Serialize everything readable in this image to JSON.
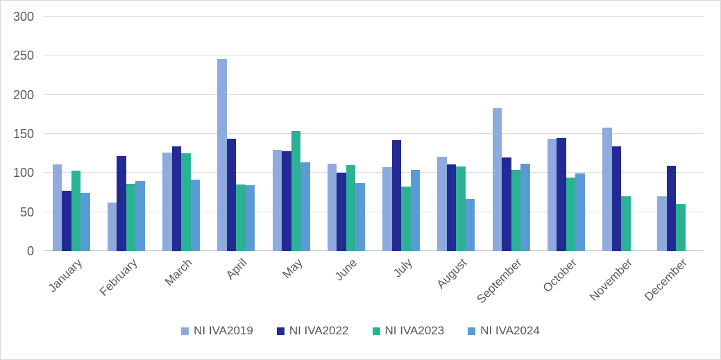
{
  "chart_data": {
    "type": "bar",
    "title": "",
    "categories": [
      "January",
      "February",
      "March",
      "April",
      "May",
      "June",
      "July",
      "August",
      "September",
      "October",
      "November",
      "December"
    ],
    "series": [
      {
        "name": "NI IVA2019",
        "color": "#8FAADC",
        "values": [
          111,
          62,
          126,
          246,
          130,
          112,
          107,
          121,
          183,
          144,
          158,
          70
        ]
      },
      {
        "name": "NI IVA2022",
        "color": "#232A93",
        "values": [
          77,
          122,
          134,
          144,
          128,
          100,
          142,
          111,
          120,
          145,
          134,
          109
        ]
      },
      {
        "name": "NI IVA2023",
        "color": "#2BB295",
        "values": [
          103,
          86,
          125,
          85,
          154,
          110,
          83,
          108,
          104,
          94,
          70,
          60
        ]
      },
      {
        "name": "NI IVA2024",
        "color": "#5B9BD5",
        "values": [
          75,
          90,
          91,
          84,
          114,
          87,
          104,
          67,
          112,
          99,
          null,
          null
        ]
      }
    ],
    "ylim": [
      0,
      300
    ],
    "yticks": [
      0,
      50,
      100,
      150,
      200,
      250,
      300
    ],
    "xlabel": "",
    "ylabel": "",
    "grid": true,
    "legend_position": "bottom",
    "colors": {
      "gridline": "#DCDCDC",
      "axis_line": "#C3C3C3",
      "tick_label": "#595959",
      "legend_text": "#545454",
      "background": "#FFFFFF",
      "frame_border": "#D6D6D6"
    }
  }
}
